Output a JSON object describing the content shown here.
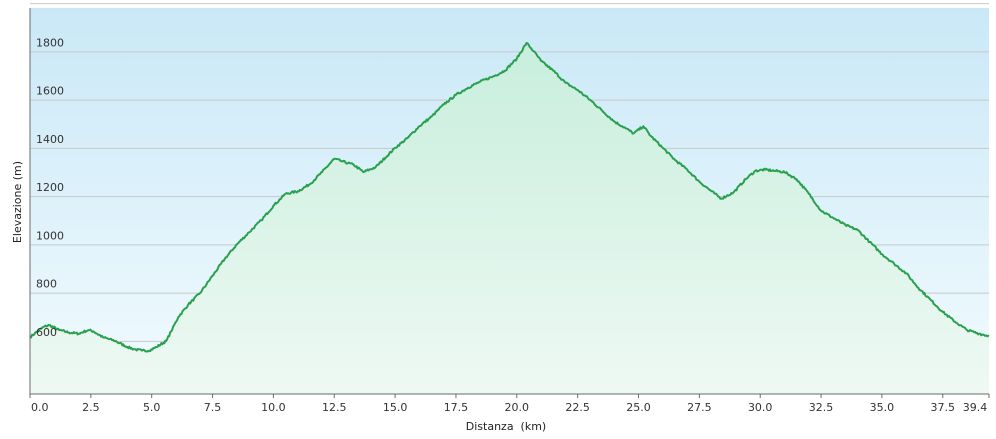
{
  "chart_data": {
    "type": "area",
    "xlabel": "Distanza  (km)",
    "ylabel": "Elevazione (m)",
    "xlim": [
      0,
      39.4
    ],
    "ylim": [
      380,
      1980
    ],
    "x_ticks": [
      "0.0",
      "2.5",
      "5.0",
      "7.5",
      "10.0",
      "12.5",
      "15.0",
      "17.5",
      "20.0",
      "22.5",
      "25.0",
      "27.5",
      "30.0",
      "32.5",
      "35.0",
      "37.5",
      "39.4"
    ],
    "x_tick_values": [
      0,
      2.5,
      5,
      7.5,
      10,
      12.5,
      15,
      17.5,
      20,
      22.5,
      25,
      27.5,
      30,
      32.5,
      35,
      37.5,
      39.4
    ],
    "y_ticks": [
      "600",
      "800",
      "1000",
      "1200",
      "1400",
      "1600",
      "1800"
    ],
    "y_tick_values": [
      600,
      800,
      1000,
      1200,
      1400,
      1600,
      1800
    ],
    "grid": "horizontal",
    "colors": {
      "line": "#2aa04e",
      "fill_top": "#c8eedd",
      "fill_bottom": "#eef9f3",
      "bg_top": "#c9e8f6",
      "bg_bottom": "#f2fbff"
    },
    "series": [
      {
        "x": [
          0,
          0.3,
          0.6,
          0.8,
          1.2,
          1.6,
          2.0,
          2.4,
          2.6,
          3.0,
          3.5,
          4.0,
          4.3,
          4.6,
          4.9,
          5.2,
          5.6,
          5.8,
          6.1,
          6.5,
          7.0,
          7.5,
          8.0,
          8.5,
          9.0,
          9.5,
          10.0,
          10.5,
          11.0,
          11.5,
          12.0,
          12.5,
          12.8,
          13.3,
          13.7,
          14.2,
          14.6,
          15.0,
          15.5,
          16.0,
          16.5,
          17.0,
          17.5,
          18.0,
          18.5,
          19.0,
          19.5,
          20.0,
          20.4,
          20.7,
          21.0,
          21.5,
          22.0,
          22.5,
          23.0,
          23.5,
          24.0,
          24.5,
          24.8,
          25.2,
          25.5,
          26.0,
          26.5,
          27.0,
          27.5,
          28.0,
          28.4,
          28.9,
          29.4,
          29.8,
          30.2,
          30.6,
          31.0,
          31.5,
          32.0,
          32.5,
          33.0,
          33.5,
          34.0,
          34.5,
          35.0,
          35.5,
          36.0,
          36.5,
          37.0,
          37.5,
          38.0,
          38.5,
          39.0,
          39.4
        ],
        "y": [
          615,
          640,
          660,
          665,
          645,
          635,
          630,
          645,
          640,
          615,
          600,
          575,
          565,
          560,
          560,
          575,
          600,
          640,
          700,
          750,
          800,
          870,
          940,
          1000,
          1050,
          1100,
          1160,
          1210,
          1220,
          1250,
          1300,
          1355,
          1345,
          1330,
          1300,
          1320,
          1360,
          1400,
          1440,
          1490,
          1530,
          1580,
          1620,
          1650,
          1675,
          1695,
          1720,
          1770,
          1835,
          1800,
          1760,
          1720,
          1670,
          1640,
          1600,
          1555,
          1510,
          1480,
          1460,
          1490,
          1450,
          1400,
          1350,
          1310,
          1260,
          1220,
          1190,
          1215,
          1270,
          1305,
          1310,
          1305,
          1300,
          1270,
          1210,
          1140,
          1110,
          1080,
          1060,
          1010,
          960,
          920,
          880,
          820,
          770,
          720,
          680,
          645,
          630,
          620
        ]
      }
    ]
  }
}
